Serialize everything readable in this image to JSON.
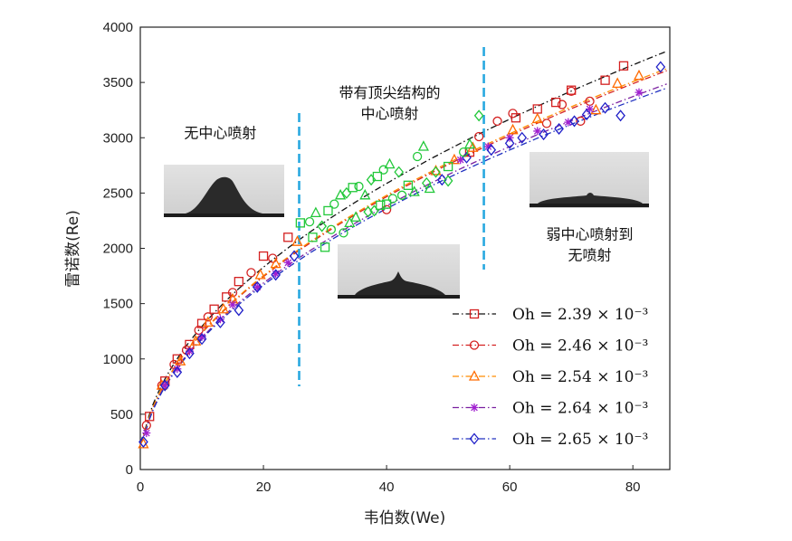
{
  "chart_data": {
    "type": "scatter",
    "xlabel": "韦伯数(We)",
    "ylabel": "雷诺数(Re)",
    "xlim": [
      0,
      86
    ],
    "ylim": [
      0,
      4000
    ],
    "xticks": [
      0,
      20,
      40,
      60,
      80
    ],
    "yticks": [
      0,
      500,
      1000,
      1500,
      2000,
      2500,
      3000,
      3500,
      4000
    ],
    "grid": false,
    "legend_position": "bottom-right",
    "regime_dividers_x": [
      25.8,
      55.8
    ],
    "annotations": [
      {
        "lines": [
          "无中心喷射"
        ],
        "at": [
          13,
          3000
        ]
      },
      {
        "lines": [
          "带有顶尖结构的",
          "中心喷射"
        ],
        "at": [
          40.5,
          3360
        ]
      },
      {
        "lines": [
          "弱中心喷射到",
          "无喷射"
        ],
        "at": [
          73,
          2080
        ]
      }
    ],
    "series": [
      {
        "name": "Oh = 2.39 × 10⁻³",
        "oh": "2.39",
        "color": "#d42020",
        "marker": "square",
        "fit_color": "#111111",
        "fit_x": [
          0,
          85.5
        ],
        "fit_a": 409,
        "fit_b": 0.5,
        "points": [
          [
            1.5,
            480
          ],
          [
            4,
            800
          ],
          [
            6,
            1000
          ],
          [
            8,
            1130
          ],
          [
            10,
            1320
          ],
          [
            12,
            1450
          ],
          [
            14,
            1560
          ],
          [
            16,
            1700
          ],
          [
            20,
            1930
          ],
          [
            24,
            2100
          ],
          [
            53.5,
            2870
          ],
          [
            61,
            3180
          ],
          [
            64.5,
            3260
          ],
          [
            67.5,
            3320
          ],
          [
            70,
            3430
          ],
          [
            75.5,
            3520
          ],
          [
            78.5,
            3650
          ]
        ]
      },
      {
        "name": "Oh = 2.46 × 10⁻³",
        "oh": "2.46",
        "color": "#d42020",
        "marker": "circle",
        "fit_color": "#d42020",
        "fit_x": [
          0,
          85.5
        ],
        "fit_a": 390,
        "fit_b": 0.5,
        "points": [
          [
            1,
            400
          ],
          [
            3.5,
            760
          ],
          [
            5.5,
            950
          ],
          [
            7.5,
            1080
          ],
          [
            9.5,
            1260
          ],
          [
            11,
            1380
          ],
          [
            15,
            1600
          ],
          [
            18,
            1780
          ],
          [
            21.5,
            1910
          ],
          [
            40,
            2350
          ],
          [
            55,
            3010
          ],
          [
            58,
            3150
          ],
          [
            60.5,
            3220
          ],
          [
            66,
            3130
          ],
          [
            68.5,
            3300
          ],
          [
            70,
            3420
          ],
          [
            71.5,
            3150
          ],
          [
            73,
            3330
          ]
        ]
      },
      {
        "name": "Oh = 2.54 × 10⁻³",
        "oh": "2.54",
        "color": "#ff6a00",
        "marker": "triangle",
        "fit_color": "#ff8c00",
        "fit_x": [
          0,
          85.5
        ],
        "fit_a": 392,
        "fit_b": 0.5,
        "points": [
          [
            0.5,
            230
          ],
          [
            3.5,
            760
          ],
          [
            6.5,
            980
          ],
          [
            9,
            1160
          ],
          [
            11,
            1330
          ],
          [
            13.5,
            1450
          ],
          [
            15,
            1540
          ],
          [
            19.5,
            1760
          ],
          [
            22,
            1860
          ],
          [
            25.5,
            2060
          ],
          [
            48,
            2700
          ],
          [
            51,
            2800
          ],
          [
            54,
            2910
          ],
          [
            60.5,
            3070
          ],
          [
            64.5,
            3170
          ],
          [
            74,
            3250
          ],
          [
            77.5,
            3490
          ],
          [
            81,
            3560
          ]
        ]
      },
      {
        "name": "Oh = 2.64 × 10⁻³",
        "oh": "2.64",
        "color": "#a020d0",
        "marker": "asterisk",
        "fit_color": "#7a1fa0",
        "fit_x": [
          0,
          85.5
        ],
        "fit_a": 377,
        "fit_b": 0.5,
        "points": [
          [
            1,
            330
          ],
          [
            4,
            760
          ],
          [
            6,
            910
          ],
          [
            8,
            1070
          ],
          [
            10,
            1200
          ],
          [
            13,
            1360
          ],
          [
            15,
            1490
          ],
          [
            19,
            1650
          ],
          [
            22,
            1770
          ],
          [
            24,
            1870
          ],
          [
            52,
            2800
          ],
          [
            56.5,
            2920
          ],
          [
            60,
            3000
          ],
          [
            64.5,
            3060
          ],
          [
            69.5,
            3140
          ],
          [
            73,
            3260
          ],
          [
            81,
            3410
          ]
        ]
      },
      {
        "name": "Oh = 2.65 × 10⁻³",
        "oh": "2.65",
        "color": "#2020c8",
        "marker": "diamond",
        "fit_color": "#2030c0",
        "fit_x": [
          0,
          85.5
        ],
        "fit_a": 373,
        "fit_b": 0.5,
        "points": [
          [
            0.5,
            250
          ],
          [
            4,
            760
          ],
          [
            6,
            880
          ],
          [
            8,
            1050
          ],
          [
            10,
            1180
          ],
          [
            13,
            1330
          ],
          [
            16,
            1440
          ],
          [
            19,
            1650
          ],
          [
            22,
            1760
          ],
          [
            25,
            1930
          ],
          [
            49,
            2620
          ],
          [
            53,
            2820
          ],
          [
            57,
            2890
          ],
          [
            60,
            2950
          ],
          [
            62,
            3000
          ],
          [
            65.5,
            3030
          ],
          [
            68,
            3080
          ],
          [
            70.5,
            3150
          ],
          [
            72.5,
            3210
          ],
          [
            75.5,
            3270
          ],
          [
            78,
            3200
          ],
          [
            84.5,
            3640
          ]
        ]
      },
      {
        "name": "",
        "color": "#22c83a",
        "marker": "mixed-green",
        "fit_x": null,
        "points": [
          [
            26,
            2230
          ],
          [
            27.5,
            2240
          ],
          [
            28.5,
            2320
          ],
          [
            29.5,
            2200
          ],
          [
            30.5,
            2340
          ],
          [
            31.5,
            2400
          ],
          [
            32.5,
            2480
          ],
          [
            33.5,
            2500
          ],
          [
            34.5,
            2550
          ],
          [
            35.5,
            2560
          ],
          [
            36.5,
            2480
          ],
          [
            37.5,
            2620
          ],
          [
            38.5,
            2650
          ],
          [
            39.5,
            2710
          ],
          [
            40.5,
            2760
          ],
          [
            42,
            2690
          ],
          [
            43.5,
            2570
          ],
          [
            45,
            2830
          ],
          [
            46,
            2920
          ],
          [
            48,
            2690
          ],
          [
            50,
            2740
          ],
          [
            52.5,
            2870
          ],
          [
            53.5,
            2940
          ],
          [
            55,
            3200
          ],
          [
            30,
            2010
          ],
          [
            33,
            2140
          ],
          [
            35,
            2280
          ],
          [
            37,
            2330
          ],
          [
            39,
            2390
          ],
          [
            41,
            2450
          ],
          [
            44.5,
            2510
          ],
          [
            46.5,
            2590
          ],
          [
            28,
            2100
          ],
          [
            31,
            2170
          ],
          [
            34,
            2230
          ],
          [
            38,
            2340
          ],
          [
            40,
            2400
          ],
          [
            42.5,
            2480
          ],
          [
            47,
            2540
          ],
          [
            50,
            2610
          ]
        ]
      }
    ]
  }
}
